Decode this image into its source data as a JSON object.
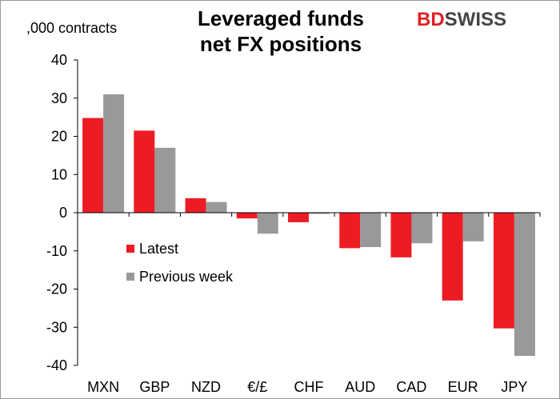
{
  "brand": {
    "logo_bd": "BD",
    "logo_swiss": "SWISS"
  },
  "chart_data": {
    "type": "bar",
    "title_line1": "Leveraged funds",
    "title_line2": "net FX positions",
    "ylabel": ",000 contracts",
    "ylim": [
      -40,
      40
    ],
    "yticks": [
      40,
      30,
      20,
      10,
      0,
      -10,
      -20,
      -30,
      -40
    ],
    "categories": [
      "MXN",
      "GBP",
      "NZD",
      "€/£",
      "CHF",
      "AUD",
      "CAD",
      "EUR",
      "JPY"
    ],
    "series": [
      {
        "name": "Latest",
        "color": "#ed1c24",
        "values": [
          24.8,
          21.5,
          3.8,
          -1.5,
          -2.5,
          -9.3,
          -11.7,
          -23.0,
          -30.3
        ]
      },
      {
        "name": "Previous week",
        "color": "#999999",
        "values": [
          31.0,
          17.0,
          2.8,
          -5.5,
          -0.3,
          -9.0,
          -8.0,
          -7.5,
          -37.5
        ]
      }
    ],
    "grid": false,
    "legend_position": "left-middle"
  }
}
